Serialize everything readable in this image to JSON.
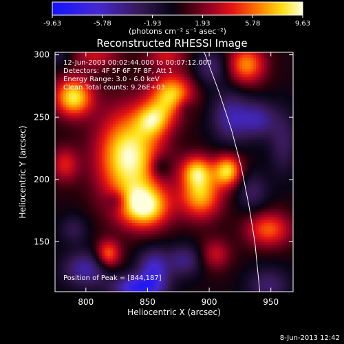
{
  "chart_data": {
    "type": "heatmap",
    "title": "Reconstructed RHESSI Image",
    "xlabel": "Heliocentric X (arcsec)",
    "ylabel": "Heliocentric Y (arcsec)",
    "xlim": [
      775,
      968
    ],
    "ylim": [
      110,
      302
    ],
    "x_ticks": [
      800,
      850,
      900,
      950
    ],
    "y_ticks": [
      150,
      200,
      250,
      300
    ],
    "colorbar": {
      "min": -9.63,
      "max": 9.63,
      "ticks": [
        "-9.63",
        "-5.78",
        "-1.93",
        "1.93",
        "5.78",
        "9.63"
      ],
      "unit_label": "(photons cm⁻² s⁻¹ asec⁻²)"
    },
    "annotations": [
      "12-Jun-2003 00:02:44.000 to 00:07:12.000",
      "Detectors: 4F 5F 6F 7F 8F, Att 1",
      "Energy Range: 3.0 - 6.0 keV",
      "Clean     Total counts: 9.26E+03"
    ],
    "peak_label": "Position of Peak = [844,187]",
    "timestamp": "8-Jun-2013 12:42",
    "limb_curve": [
      [
        896,
        302
      ],
      [
        908,
        270
      ],
      [
        918,
        240
      ],
      [
        926,
        210
      ],
      [
        932,
        180
      ],
      [
        937,
        150
      ],
      [
        941,
        110
      ]
    ],
    "blobs": [
      {
        "x": 835,
        "y": 218,
        "sx": 18,
        "sy": 26,
        "amp": 9.6
      },
      {
        "x": 790,
        "y": 266,
        "sx": 11,
        "sy": 11,
        "amp": 8.5
      },
      {
        "x": 848,
        "y": 178,
        "sx": 14,
        "sy": 12,
        "amp": 8.5
      },
      {
        "x": 870,
        "y": 268,
        "sx": 12,
        "sy": 12,
        "amp": 7.8
      },
      {
        "x": 855,
        "y": 248,
        "sx": 10,
        "sy": 10,
        "amp": 6.0
      },
      {
        "x": 818,
        "y": 140,
        "sx": 7,
        "sy": 8,
        "amp": 6.0
      },
      {
        "x": 893,
        "y": 187,
        "sx": 12,
        "sy": 13,
        "amp": 7.2
      },
      {
        "x": 890,
        "y": 207,
        "sx": 9,
        "sy": 9,
        "amp": 6.5
      },
      {
        "x": 915,
        "y": 207,
        "sx": 8,
        "sy": 9,
        "amp": 8.0
      },
      {
        "x": 948,
        "y": 160,
        "sx": 13,
        "sy": 10,
        "amp": 5.5
      },
      {
        "x": 930,
        "y": 292,
        "sx": 11,
        "sy": 11,
        "amp": 6.5
      },
      {
        "x": 783,
        "y": 212,
        "sx": 8,
        "sy": 10,
        "amp": 4.0
      },
      {
        "x": 808,
        "y": 300,
        "sx": 14,
        "sy": 8,
        "amp": 3.5
      },
      {
        "x": 905,
        "y": 140,
        "sx": 9,
        "sy": 9,
        "amp": 3.5
      },
      {
        "x": 865,
        "y": 300,
        "sx": 12,
        "sy": 7,
        "amp": 3.5
      },
      {
        "x": 790,
        "y": 160,
        "sx": 8,
        "sy": 8,
        "amp": -2.5
      },
      {
        "x": 800,
        "y": 128,
        "sx": 13,
        "sy": 10,
        "amp": -5.0
      },
      {
        "x": 855,
        "y": 128,
        "sx": 9,
        "sy": 11,
        "amp": -6.0
      },
      {
        "x": 842,
        "y": 113,
        "sx": 14,
        "sy": 7,
        "amp": -7.5
      },
      {
        "x": 880,
        "y": 135,
        "sx": 10,
        "sy": 9,
        "amp": -4.0
      },
      {
        "x": 918,
        "y": 250,
        "sx": 11,
        "sy": 14,
        "amp": -5.0
      },
      {
        "x": 940,
        "y": 248,
        "sx": 10,
        "sy": 10,
        "amp": -4.5
      },
      {
        "x": 902,
        "y": 290,
        "sx": 10,
        "sy": 10,
        "amp": -3.5
      },
      {
        "x": 935,
        "y": 190,
        "sx": 9,
        "sy": 11,
        "amp": -3.0
      },
      {
        "x": 948,
        "y": 115,
        "sx": 12,
        "sy": 10,
        "amp": -3.5
      },
      {
        "x": 860,
        "y": 210,
        "sx": 6,
        "sy": 7,
        "amp": -3.0
      },
      {
        "x": 825,
        "y": 183,
        "sx": 6,
        "sy": 6,
        "amp": -2.5
      },
      {
        "x": 880,
        "y": 258,
        "sx": 6,
        "sy": 6,
        "amp": -2.0
      },
      {
        "x": 960,
        "y": 230,
        "sx": 8,
        "sy": 18,
        "amp": -3.0
      },
      {
        "x": 778,
        "y": 300,
        "sx": 8,
        "sy": 8,
        "amp": -2.0
      }
    ]
  }
}
